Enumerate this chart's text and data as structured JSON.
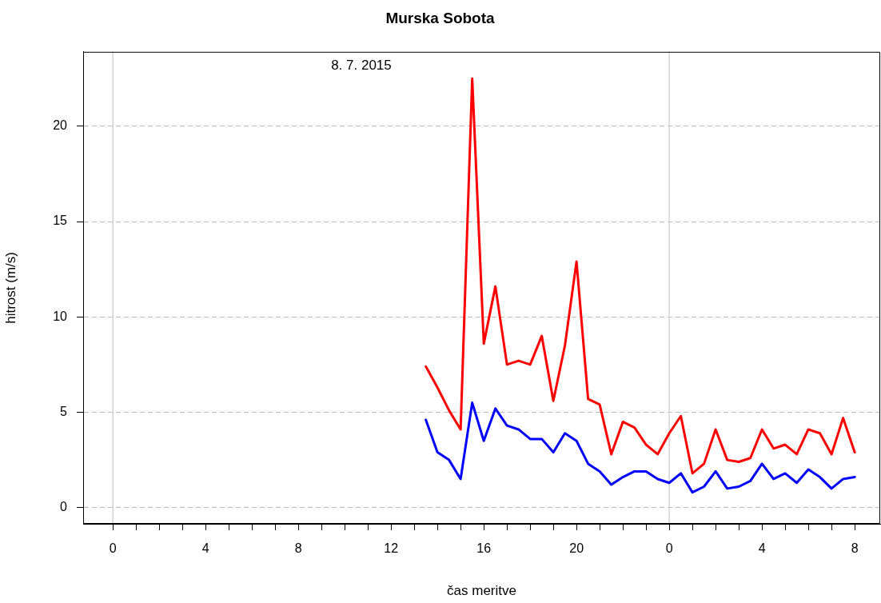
{
  "chart_data": {
    "type": "line",
    "title": "Murska Sobota",
    "xlabel": "čas meritve",
    "ylabel": "hitrost (m/s)",
    "x": [
      "2015-07-08T13:30",
      "2015-07-08T14:00",
      "2015-07-08T14:30",
      "2015-07-08T15:00",
      "2015-07-08T15:30",
      "2015-07-08T16:00",
      "2015-07-08T16:30",
      "2015-07-08T17:00",
      "2015-07-08T17:30",
      "2015-07-08T18:00",
      "2015-07-08T18:30",
      "2015-07-08T19:00",
      "2015-07-08T19:30",
      "2015-07-08T20:00",
      "2015-07-08T20:30",
      "2015-07-08T21:00",
      "2015-07-08T21:30",
      "2015-07-08T22:00",
      "2015-07-08T22:30",
      "2015-07-08T23:00",
      "2015-07-08T23:30",
      "2015-07-09T00:00",
      "2015-07-09T00:30",
      "2015-07-09T01:00",
      "2015-07-09T01:30",
      "2015-07-09T02:00",
      "2015-07-09T02:30",
      "2015-07-09T03:00",
      "2015-07-09T03:30",
      "2015-07-09T04:00",
      "2015-07-09T04:30",
      "2015-07-09T05:00",
      "2015-07-09T05:30",
      "2015-07-09T06:00",
      "2015-07-09T06:30",
      "2015-07-09T07:00",
      "2015-07-09T07:30",
      "2015-07-09T08:00"
    ],
    "series": [
      {
        "color": "#ff0000",
        "values": [
          7.4,
          6.3,
          5.1,
          4.1,
          22.5,
          8.6,
          11.6,
          7.5,
          7.7,
          7.5,
          9.0,
          5.6,
          8.5,
          12.9,
          5.7,
          5.4,
          2.8,
          4.5,
          4.2,
          3.3,
          2.8,
          3.9,
          4.8,
          1.8,
          2.3,
          4.1,
          2.5,
          2.4,
          2.6,
          4.1,
          3.1,
          3.3,
          2.8,
          4.1,
          3.9,
          2.8,
          4.7,
          2.9
        ]
      },
      {
        "color": "#0000ff",
        "values": [
          4.6,
          2.9,
          2.5,
          1.5,
          5.5,
          3.5,
          5.2,
          4.3,
          4.1,
          3.6,
          3.6,
          2.9,
          3.9,
          3.5,
          2.3,
          1.9,
          1.2,
          1.6,
          1.9,
          1.9,
          1.5,
          1.3,
          1.8,
          0.8,
          1.1,
          1.9,
          1.0,
          1.1,
          1.4,
          2.3,
          1.5,
          1.8,
          1.3,
          2.0,
          1.6,
          1.0,
          1.5,
          1.6
        ]
      }
    ],
    "xlim": [
      "2015-07-07T22:43",
      "2015-07-09T09:06"
    ],
    "ylim": [
      -0.85,
      23.9
    ],
    "xticks": [
      {
        "value": "2015-07-08T00:00",
        "label": "0"
      },
      {
        "value": "2015-07-08T01:00",
        "label": null
      },
      {
        "value": "2015-07-08T02:00",
        "label": null
      },
      {
        "value": "2015-07-08T03:00",
        "label": null
      },
      {
        "value": "2015-07-08T04:00",
        "label": "4"
      },
      {
        "value": "2015-07-08T05:00",
        "label": null
      },
      {
        "value": "2015-07-08T06:00",
        "label": null
      },
      {
        "value": "2015-07-08T07:00",
        "label": null
      },
      {
        "value": "2015-07-08T08:00",
        "label": "8"
      },
      {
        "value": "2015-07-08T09:00",
        "label": null
      },
      {
        "value": "2015-07-08T10:00",
        "label": null
      },
      {
        "value": "2015-07-08T11:00",
        "label": null
      },
      {
        "value": "2015-07-08T12:00",
        "label": "12"
      },
      {
        "value": "2015-07-08T13:00",
        "label": null
      },
      {
        "value": "2015-07-08T14:00",
        "label": null
      },
      {
        "value": "2015-07-08T15:00",
        "label": null
      },
      {
        "value": "2015-07-08T16:00",
        "label": "16"
      },
      {
        "value": "2015-07-08T17:00",
        "label": null
      },
      {
        "value": "2015-07-08T18:00",
        "label": null
      },
      {
        "value": "2015-07-08T19:00",
        "label": null
      },
      {
        "value": "2015-07-08T20:00",
        "label": "20"
      },
      {
        "value": "2015-07-08T21:00",
        "label": null
      },
      {
        "value": "2015-07-08T22:00",
        "label": null
      },
      {
        "value": "2015-07-08T23:00",
        "label": null
      },
      {
        "value": "2015-07-09T00:00",
        "label": "0"
      },
      {
        "value": "2015-07-09T01:00",
        "label": null
      },
      {
        "value": "2015-07-09T02:00",
        "label": null
      },
      {
        "value": "2015-07-09T03:00",
        "label": null
      },
      {
        "value": "2015-07-09T04:00",
        "label": "4"
      },
      {
        "value": "2015-07-09T05:00",
        "label": null
      },
      {
        "value": "2015-07-09T06:00",
        "label": null
      },
      {
        "value": "2015-07-09T07:00",
        "label": null
      },
      {
        "value": "2015-07-09T08:00",
        "label": "8"
      }
    ],
    "yticks": [
      0,
      5,
      10,
      15,
      20
    ],
    "grid": "y",
    "legend": false,
    "marker": "none",
    "line_style": "solid",
    "ref_lines": [
      {
        "axis": "x",
        "value": "2015-07-08T00:00",
        "color": "#d3d3d3"
      },
      {
        "axis": "x",
        "value": "2015-07-09T00:00",
        "color": "#d3d3d3"
      }
    ],
    "annotations": [
      "8. 7. 2015"
    ]
  }
}
